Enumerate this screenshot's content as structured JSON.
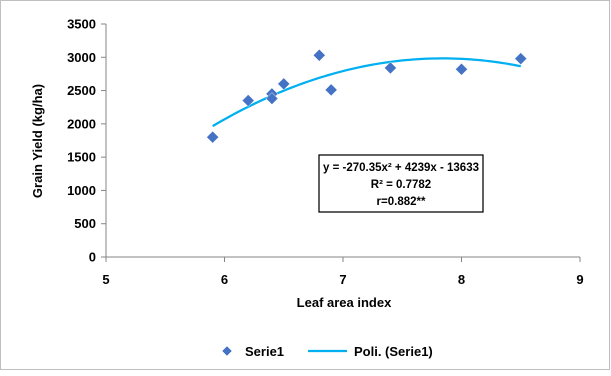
{
  "chart_data": {
    "type": "scatter",
    "title": "",
    "xlabel": "Leaf area index",
    "ylabel": "Grain Yield (kg/ha)",
    "xlim": [
      5,
      9
    ],
    "ylim": [
      0,
      3500
    ],
    "x_ticks": [
      "5",
      "6",
      "7",
      "8",
      "9"
    ],
    "y_ticks": [
      "0",
      "500",
      "1000",
      "1500",
      "2000",
      "2500",
      "3000",
      "3500"
    ],
    "grid": false,
    "legend_position": "bottom",
    "series": [
      {
        "name": "Serie1",
        "marker": "diamond",
        "color": "#4472C4",
        "points": [
          {
            "x": 5.9,
            "y": 1800
          },
          {
            "x": 6.2,
            "y": 2350
          },
          {
            "x": 6.4,
            "y": 2450
          },
          {
            "x": 6.4,
            "y": 2380
          },
          {
            "x": 6.5,
            "y": 2600
          },
          {
            "x": 6.8,
            "y": 3030
          },
          {
            "x": 6.9,
            "y": 2510
          },
          {
            "x": 7.4,
            "y": 2840
          },
          {
            "x": 8.0,
            "y": 2820
          },
          {
            "x": 8.5,
            "y": 2980
          }
        ]
      }
    ],
    "trendline": {
      "name": "Poli. (Serie1)",
      "type": "polynomial",
      "order": 2,
      "color": "#00B0F0",
      "coefficients": {
        "a": -270.35,
        "b": 4239,
        "c": -13633
      },
      "x_range": [
        5.9,
        8.5
      ]
    },
    "annotation": {
      "lines": [
        "y = -270.35x² + 4239x - 13633",
        "R² = 0.7782",
        "r=0.882**"
      ]
    }
  }
}
